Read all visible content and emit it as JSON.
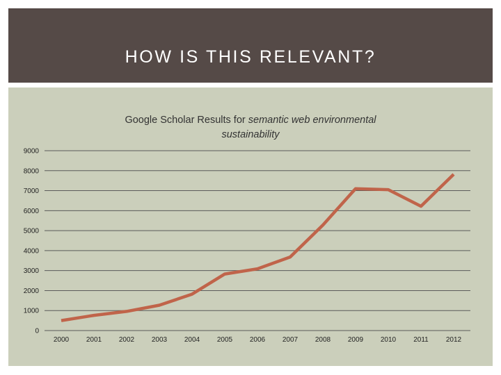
{
  "slide": {
    "title": "HOW IS THIS RELEVANT?"
  },
  "chart_data": {
    "type": "line",
    "title_prefix": "Google Scholar Results for ",
    "title_italic_1": "semantic web environmental",
    "title_italic_2": "sustainability",
    "x": [
      "2000",
      "2001",
      "2002",
      "2003",
      "2004",
      "2005",
      "2006",
      "2007",
      "2008",
      "2009",
      "2010",
      "2011",
      "2012"
    ],
    "series": [
      {
        "values": [
          500,
          760,
          960,
          1270,
          1820,
          2830,
          3090,
          3680,
          5280,
          7100,
          7050,
          6220,
          7820
        ]
      }
    ],
    "ylim": [
      0,
      9000
    ],
    "yticks": [
      0,
      1000,
      2000,
      3000,
      4000,
      5000,
      6000,
      7000,
      8000,
      9000
    ],
    "grid": true,
    "line_color": "#c0644a"
  }
}
